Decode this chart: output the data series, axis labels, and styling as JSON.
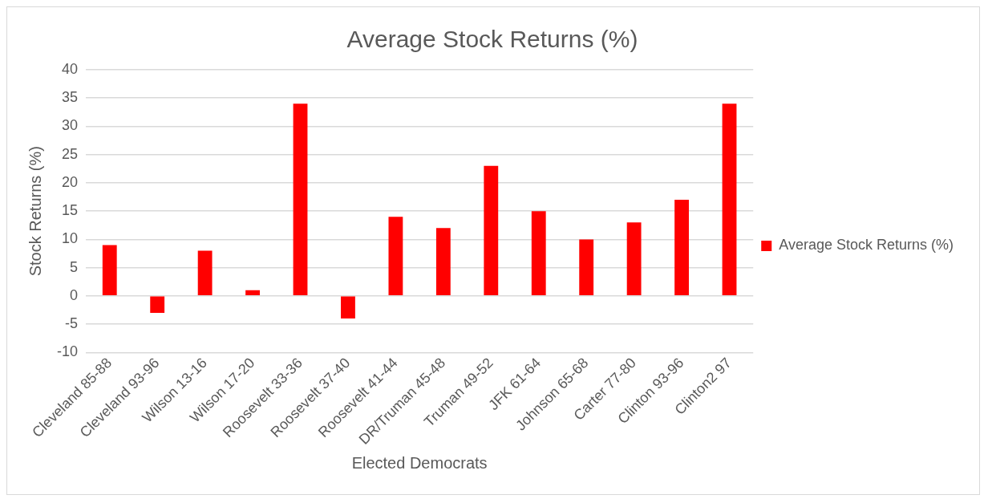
{
  "chart_data": {
    "type": "bar",
    "title": "Average Stock Returns (%)",
    "xlabel": "Elected Democrats",
    "ylabel": "Stock Returns (%)",
    "categories": [
      "Cleveland 85-88",
      "Cleveland 93-96",
      "Wilson 13-16",
      "Wilson 17-20",
      "Roosevelt 33-36",
      "Roosevelt 37-40",
      "Roosevelt 41-44",
      "DR/Truman 45-48",
      "Truman 49-52",
      "JFK 61-64",
      "Johnson 65-68",
      "Carter 77-80",
      "Clinton 93-96",
      "Clinton2 97"
    ],
    "series": [
      {
        "name": "Average Stock Returns (%)",
        "color": "#ff0000",
        "values": [
          9,
          -3,
          8,
          1,
          34,
          -4,
          14,
          12,
          23,
          15,
          10,
          13,
          17,
          34
        ]
      }
    ],
    "ylim": [
      -10,
      40
    ],
    "yticks": [
      -10,
      -5,
      0,
      5,
      10,
      15,
      20,
      25,
      30,
      35,
      40
    ],
    "grid": "y",
    "legend": "right"
  }
}
